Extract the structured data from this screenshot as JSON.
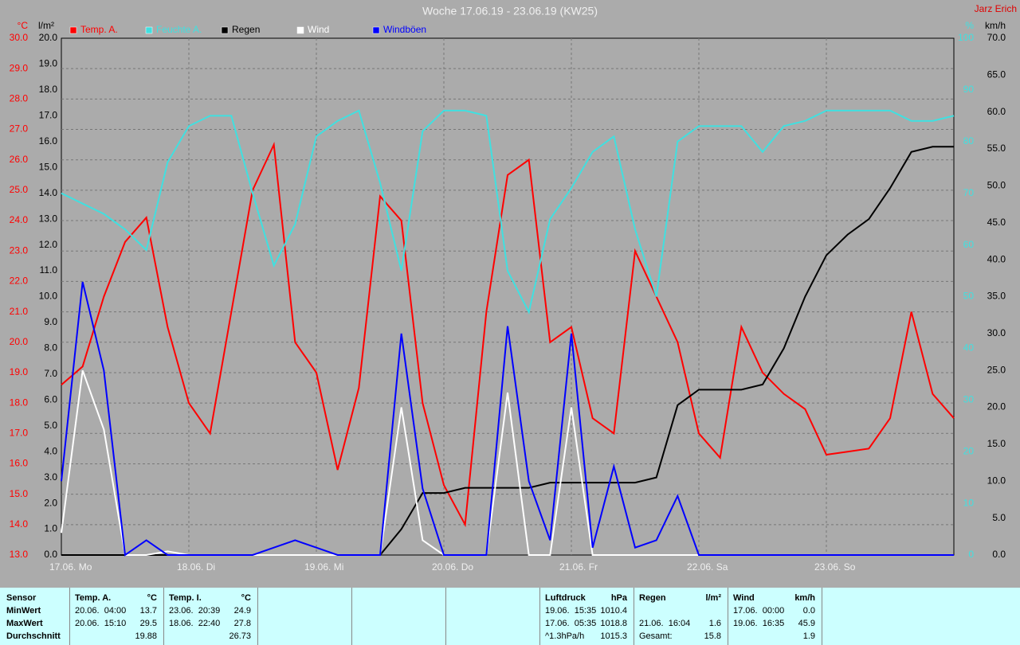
{
  "chart_data": {
    "type": "line",
    "title": "Woche 17.06.19 - 23.06.19 (KW25)",
    "author": "Jarz Erich",
    "grid": true,
    "xlim": [
      0,
      168
    ],
    "xticks": [
      {
        "value": 0,
        "label": "17.06. Mo"
      },
      {
        "value": 24,
        "label": "18.06. Di"
      },
      {
        "value": 48,
        "label": "19.06. Mi"
      },
      {
        "value": 72,
        "label": "20.06. Do"
      },
      {
        "value": 96,
        "label": "21.06. Fr"
      },
      {
        "value": 120,
        "label": "22.06. Sa"
      },
      {
        "value": 144,
        "label": "23.06. So"
      }
    ],
    "axes": {
      "temp": {
        "label": "°C",
        "color": "#ff0000",
        "side": "left",
        "lim": [
          13,
          30
        ],
        "ticks": [
          {
            "value": 13,
            "label": "13.0"
          },
          {
            "value": 14,
            "label": "14.0"
          },
          {
            "value": 15,
            "label": "15.0"
          },
          {
            "value": 16,
            "label": "16.0"
          },
          {
            "value": 17,
            "label": "17.0"
          },
          {
            "value": 18,
            "label": "18.0"
          },
          {
            "value": 19,
            "label": "19.0"
          },
          {
            "value": 20,
            "label": "20.0"
          },
          {
            "value": 21,
            "label": "21.0"
          },
          {
            "value": 22,
            "label": "22.0"
          },
          {
            "value": 23,
            "label": "23.0"
          },
          {
            "value": 24,
            "label": "24.0"
          },
          {
            "value": 25,
            "label": "25.0"
          },
          {
            "value": 26,
            "label": "26.0"
          },
          {
            "value": 27,
            "label": "27.0"
          },
          {
            "value": 28,
            "label": "28.0"
          },
          {
            "value": 29,
            "label": "29.0"
          },
          {
            "value": 30,
            "label": "30.0"
          }
        ]
      },
      "rain": {
        "label": "l/m²",
        "color": "#000000",
        "side": "left2",
        "lim": [
          0,
          20
        ],
        "ticks": [
          {
            "value": 0,
            "label": "0.0"
          },
          {
            "value": 1,
            "label": "1.0"
          },
          {
            "value": 2,
            "label": "2.0"
          },
          {
            "value": 3,
            "label": "3.0"
          },
          {
            "value": 4,
            "label": "4.0"
          },
          {
            "value": 5,
            "label": "5.0"
          },
          {
            "value": 6,
            "label": "6.0"
          },
          {
            "value": 7,
            "label": "7.0"
          },
          {
            "value": 8,
            "label": "8.0"
          },
          {
            "value": 9,
            "label": "9.0"
          },
          {
            "value": 10,
            "label": "10.0"
          },
          {
            "value": 11,
            "label": "11.0"
          },
          {
            "value": 12,
            "label": "12.0"
          },
          {
            "value": 13,
            "label": "13.0"
          },
          {
            "value": 14,
            "label": "14.0"
          },
          {
            "value": 15,
            "label": "15.0"
          },
          {
            "value": 16,
            "label": "16.0"
          },
          {
            "value": 17,
            "label": "17.0"
          },
          {
            "value": 18,
            "label": "18.0"
          },
          {
            "value": 19,
            "label": "19.0"
          },
          {
            "value": 20,
            "label": "20.0"
          }
        ]
      },
      "hum": {
        "label": "%",
        "color": "#40e0e0",
        "side": "right",
        "lim": [
          0,
          100
        ],
        "ticks": [
          0,
          10,
          20,
          30,
          40,
          50,
          60,
          70,
          80,
          90,
          100
        ]
      },
      "wind": {
        "label": "km/h",
        "color": "#000000",
        "side": "right2",
        "lim": [
          0,
          70
        ],
        "ticks": [
          {
            "value": 0,
            "label": "0.0"
          },
          {
            "value": 5,
            "label": "5.0"
          },
          {
            "value": 10,
            "label": "10.0"
          },
          {
            "value": 15,
            "label": "15.0"
          },
          {
            "value": 20,
            "label": "20.0"
          },
          {
            "value": 25,
            "label": "25.0"
          },
          {
            "value": 30,
            "label": "30.0"
          },
          {
            "value": 35,
            "label": "35.0"
          },
          {
            "value": 40,
            "label": "40.0"
          },
          {
            "value": 45,
            "label": "45.0"
          },
          {
            "value": 50,
            "label": "50.0"
          },
          {
            "value": 55,
            "label": "55.0"
          },
          {
            "value": 60,
            "label": "60.0"
          },
          {
            "value": 65,
            "label": "65.0"
          },
          {
            "value": 70,
            "label": "70.0"
          }
        ]
      }
    },
    "x": [
      0,
      4,
      8,
      12,
      16,
      20,
      24,
      28,
      32,
      36,
      40,
      44,
      48,
      52,
      56,
      60,
      64,
      68,
      72,
      76,
      80,
      84,
      88,
      92,
      96,
      100,
      104,
      108,
      112,
      116,
      120,
      124,
      128,
      132,
      136,
      140,
      144,
      148,
      152,
      156,
      160,
      164,
      168
    ],
    "series": [
      {
        "name": "Temp. A.",
        "color": "#ff0000",
        "axis": "temp",
        "values": [
          18.6,
          19.2,
          21.5,
          23.3,
          24.1,
          20.5,
          18.0,
          17.0,
          21.0,
          25.0,
          26.5,
          20.0,
          19.0,
          15.8,
          18.5,
          24.8,
          24.0,
          18.0,
          15.3,
          14.0,
          21.0,
          25.5,
          26.0,
          20.0,
          20.5,
          17.5,
          17.0,
          23.0,
          21.5,
          20.0,
          17.0,
          16.2,
          20.5,
          19.0,
          18.3,
          17.8,
          16.3,
          16.4,
          16.5,
          17.5,
          21.0,
          18.3,
          17.5
        ]
      },
      {
        "name": "Feuchte A.",
        "color": "#40e0e0",
        "axis": "hum",
        "values": [
          70,
          68,
          66,
          63,
          59,
          76,
          83,
          85,
          85,
          70,
          56,
          64,
          81,
          84,
          86,
          72,
          55,
          82,
          86,
          86,
          85,
          55,
          47,
          65,
          71,
          78,
          81,
          63,
          50,
          80,
          83,
          83,
          83,
          78,
          83,
          84,
          86,
          86,
          86,
          86,
          84,
          84,
          85
        ]
      },
      {
        "name": "Regen",
        "color": "#000000",
        "axis": "rain",
        "values": [
          0,
          0,
          0,
          0,
          0,
          0,
          0,
          0,
          0,
          0,
          0,
          0,
          0,
          0,
          0,
          0,
          1.0,
          2.4,
          2.4,
          2.6,
          2.6,
          2.6,
          2.6,
          2.8,
          2.8,
          2.8,
          2.8,
          2.8,
          3.0,
          5.8,
          6.4,
          6.4,
          6.4,
          6.6,
          8.0,
          10.0,
          11.6,
          12.4,
          13.0,
          14.2,
          15.6,
          15.8,
          15.8
        ]
      },
      {
        "name": "Wind",
        "color": "#ffffff",
        "axis": "wind",
        "values": [
          3,
          25,
          17,
          0,
          0,
          0.5,
          0,
          0,
          0,
          0,
          0,
          0,
          0,
          0,
          0,
          0,
          20,
          2,
          0,
          0,
          0,
          22,
          0,
          0,
          20,
          0,
          0,
          0,
          0,
          0,
          0,
          0,
          0,
          0,
          0,
          0,
          0,
          0,
          0,
          0,
          0,
          0,
          0
        ]
      },
      {
        "name": "Windböen",
        "color": "#0000ff",
        "axis": "wind",
        "values": [
          10,
          37,
          25,
          0,
          2,
          0,
          0,
          0,
          0,
          0,
          1,
          2,
          1,
          0,
          0,
          0,
          30,
          9,
          0,
          0,
          0,
          31,
          10,
          2,
          30,
          1,
          12,
          1,
          2,
          8,
          0,
          0,
          0,
          0,
          0,
          0,
          0,
          0,
          0,
          0,
          0,
          0,
          0
        ]
      }
    ]
  },
  "table": {
    "corner": "Sensor",
    "row_labels": [
      "MinWert",
      "MaxWert",
      "Durchschnitt"
    ],
    "groups": [
      {
        "name": "Temp. A.",
        "unit": "°C",
        "col": 1,
        "rows": [
          {
            "time": "20.06.  04:00",
            "value": "13.7"
          },
          {
            "time": "20.06.  15:10",
            "value": "29.5"
          },
          {
            "value": "19.88"
          }
        ]
      },
      {
        "name": "Temp. I.",
        "unit": "°C",
        "col": 2,
        "rows": [
          {
            "time": "23.06.  20:39",
            "value": "24.9"
          },
          {
            "time": "18.06.  22:40",
            "value": "27.8"
          },
          {
            "value": "26.73"
          }
        ]
      },
      {
        "name": "Luftdruck",
        "unit": "hPa",
        "col": 6,
        "rows": [
          {
            "time": "19.06.  15:35",
            "value": "1010.4"
          },
          {
            "time": "17.06.  05:35",
            "value": "1018.8"
          },
          {
            "time": "^1.3hPa/h",
            "value": "1015.3"
          }
        ]
      },
      {
        "name": "Regen",
        "unit": "l/m²",
        "col": 7,
        "rows": [
          {},
          {
            "time": "21.06.  16:04",
            "value": "1.6"
          },
          {
            "time": "Gesamt:",
            "value": "15.8"
          }
        ]
      },
      {
        "name": "Wind",
        "unit": "km/h",
        "col": 8,
        "rows": [
          {
            "time": "17.06.  00:00",
            "value": "0.0"
          },
          {
            "time": "19.06.  16:35",
            "value": "45.9"
          },
          {
            "value": "1.9"
          }
        ]
      }
    ]
  }
}
